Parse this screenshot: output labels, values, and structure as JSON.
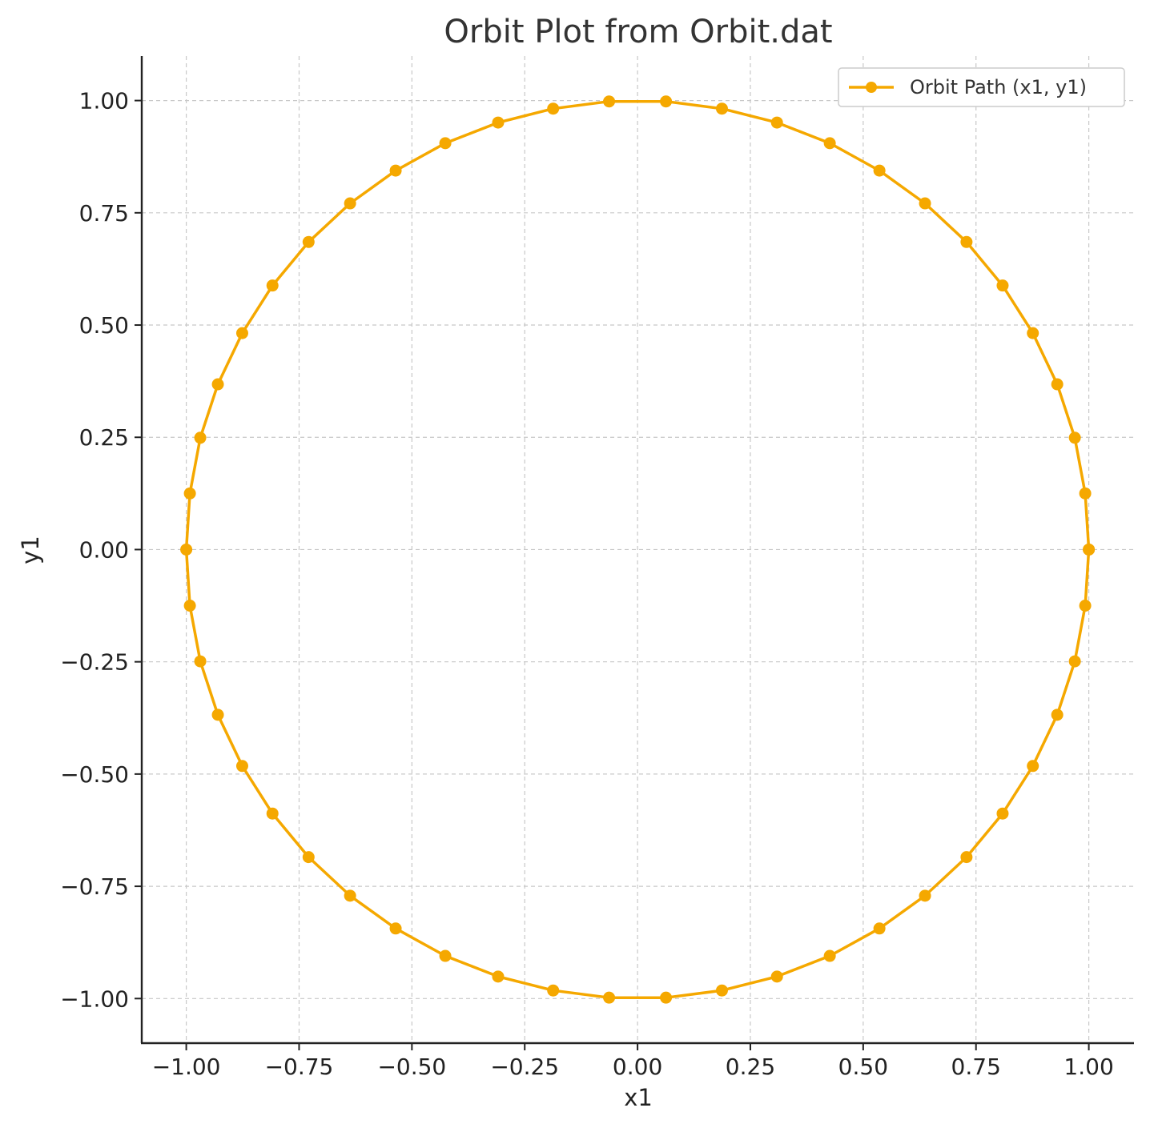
{
  "chart_data": {
    "type": "line",
    "title": "Orbit Plot from Orbit.dat",
    "xlabel": "x1",
    "ylabel": "y1",
    "xlim": [
      -1.1,
      1.1
    ],
    "ylim": [
      -1.1,
      1.1
    ],
    "grid": true,
    "legend_position": "top-right",
    "x_ticks": [
      "−1.00",
      "−0.75",
      "−0.50",
      "−0.25",
      "0.00",
      "0.25",
      "0.50",
      "0.75",
      "1.00"
    ],
    "x_tick_values": [
      -1.0,
      -0.75,
      -0.5,
      -0.25,
      0.0,
      0.25,
      0.5,
      0.75,
      1.0
    ],
    "y_ticks": [
      "1.00",
      "0.75",
      "0.50",
      "0.25",
      "0.00",
      "−0.25",
      "−0.50",
      "−0.75",
      "−1.00"
    ],
    "y_tick_values": [
      1.0,
      0.75,
      0.5,
      0.25,
      0.0,
      -0.25,
      -0.5,
      -0.75,
      -1.0
    ],
    "series": [
      {
        "name": "Orbit Path (x1, y1)",
        "color": "#f5a800",
        "marker": "circle",
        "x": [
          1.0,
          0.992,
          0.969,
          0.93,
          0.876,
          0.809,
          0.729,
          0.637,
          0.536,
          0.426,
          0.309,
          0.187,
          0.063,
          -0.063,
          -0.187,
          -0.309,
          -0.426,
          -0.536,
          -0.637,
          -0.729,
          -0.809,
          -0.876,
          -0.93,
          -0.969,
          -0.992,
          -1.0,
          -0.992,
          -0.969,
          -0.93,
          -0.876,
          -0.809,
          -0.729,
          -0.637,
          -0.536,
          -0.426,
          -0.309,
          -0.187,
          -0.063,
          0.063,
          0.187,
          0.309,
          0.426,
          0.536,
          0.637,
          0.729,
          0.809,
          0.876,
          0.93,
          0.969,
          0.992,
          1.0
        ],
        "y": [
          0.0,
          0.125,
          0.249,
          0.368,
          0.482,
          0.588,
          0.685,
          0.771,
          0.844,
          0.905,
          0.951,
          0.982,
          0.998,
          0.998,
          0.982,
          0.951,
          0.905,
          0.844,
          0.771,
          0.685,
          0.588,
          0.482,
          0.368,
          0.249,
          0.125,
          0.0,
          -0.125,
          -0.249,
          -0.368,
          -0.482,
          -0.588,
          -0.685,
          -0.771,
          -0.844,
          -0.905,
          -0.951,
          -0.982,
          -0.998,
          -0.998,
          -0.982,
          -0.951,
          -0.905,
          -0.844,
          -0.771,
          -0.685,
          -0.588,
          -0.482,
          -0.368,
          -0.249,
          -0.125,
          0.0
        ]
      }
    ]
  }
}
